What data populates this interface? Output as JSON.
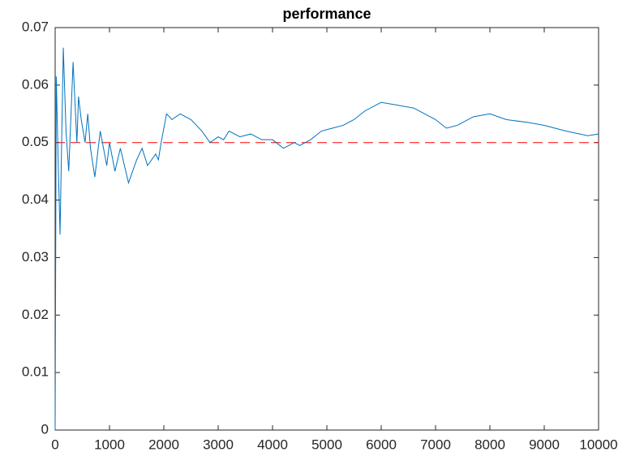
{
  "chart_data": {
    "type": "line",
    "title": "performance",
    "x": [
      0,
      20,
      60,
      90,
      150,
      200,
      250,
      330,
      400,
      430,
      480,
      550,
      600,
      650,
      730,
      830,
      950,
      1000,
      1100,
      1200,
      1350,
      1500,
      1600,
      1700,
      1850,
      1900,
      1950,
      2050,
      2150,
      2300,
      2500,
      2700,
      2850,
      3000,
      3100,
      3200,
      3400,
      3600,
      3800,
      4000,
      4200,
      4400,
      4500,
      4700,
      4900,
      5100,
      5300,
      5500,
      5700,
      6000,
      6300,
      6600,
      7000,
      7200,
      7400,
      7700,
      8000,
      8300,
      8700,
      9000,
      9400,
      9800,
      10000
    ],
    "series": [
      {
        "name": "performance",
        "color": "#0072bd",
        "values": [
          0,
          0.0615,
          0.045,
          0.034,
          0.0665,
          0.052,
          0.045,
          0.064,
          0.05,
          0.058,
          0.054,
          0.05,
          0.055,
          0.049,
          0.044,
          0.052,
          0.046,
          0.05,
          0.045,
          0.049,
          0.043,
          0.047,
          0.049,
          0.046,
          0.048,
          0.047,
          0.05,
          0.055,
          0.054,
          0.055,
          0.054,
          0.052,
          0.05,
          0.051,
          0.0505,
          0.052,
          0.051,
          0.0515,
          0.0505,
          0.0505,
          0.049,
          0.05,
          0.0495,
          0.0505,
          0.052,
          0.0525,
          0.053,
          0.054,
          0.0555,
          0.057,
          0.0565,
          0.056,
          0.054,
          0.0525,
          0.053,
          0.0545,
          0.055,
          0.054,
          0.0535,
          0.053,
          0.052,
          0.0512,
          0.0515
        ]
      }
    ],
    "reference_line": {
      "value": 0.05,
      "color": "#ff0000"
    },
    "xlim": [
      0,
      10000
    ],
    "xticks": [
      0,
      1000,
      2000,
      3000,
      4000,
      5000,
      6000,
      7000,
      8000,
      9000,
      10000
    ],
    "ylim": [
      0,
      0.07
    ],
    "yticks": [
      0,
      0.01,
      0.02,
      0.03,
      0.04,
      0.05,
      0.06,
      0.07
    ]
  }
}
